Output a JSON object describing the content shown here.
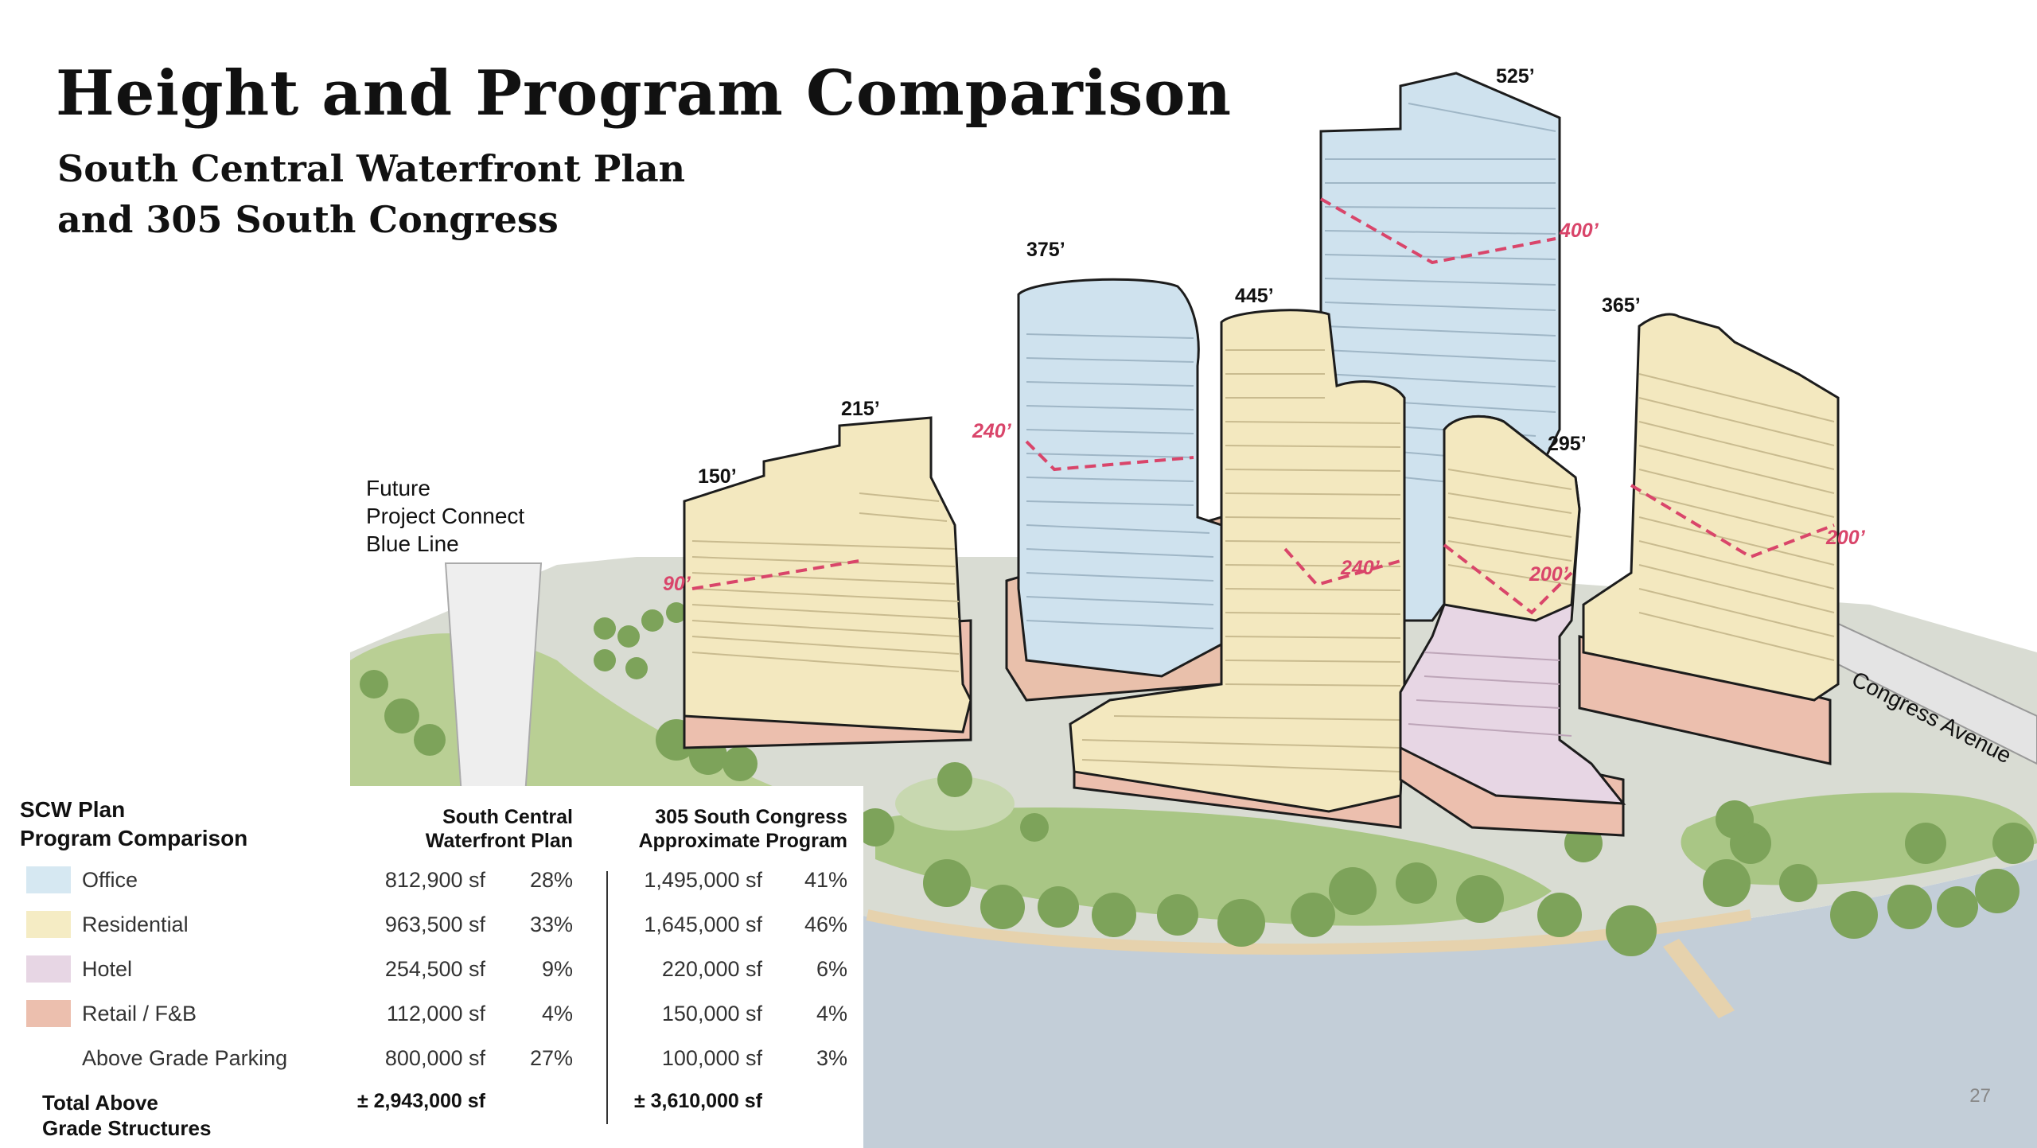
{
  "slide": {
    "title": "Height and Program Comparison",
    "subtitle_line1": "South Central Waterfront Plan",
    "subtitle_line2": "and 305 South Congress",
    "page_number": "27"
  },
  "map": {
    "transit_line1": "Future",
    "transit_line2": "Project Connect",
    "transit_line3": "Blue Line",
    "street_label": "Congress Avenue",
    "building_heights": [
      "150’",
      "215’",
      "375’",
      "445’",
      "525’",
      "295’",
      "365’"
    ],
    "plan_heights": [
      "90’",
      "240’",
      "240’",
      "400’",
      "200’",
      "200’"
    ]
  },
  "table": {
    "title_line1": "SCW Plan",
    "title_line2": "Program Comparison",
    "col1_line1": "South Central",
    "col1_line2": "Waterfront Plan",
    "col2_line1": "305 South Congress",
    "col2_line2": "Approximate Program",
    "rows": [
      {
        "category": "Office",
        "color": "#d6e8f2",
        "scw_sf": "812,900 sf",
        "scw_pct": "28%",
        "sc_sf": "1,495,000 sf",
        "sc_pct": "41%"
      },
      {
        "category": "Residential",
        "color": "#f5ecc4",
        "scw_sf": "963,500 sf",
        "scw_pct": "33%",
        "sc_sf": "1,645,000 sf",
        "sc_pct": "46%"
      },
      {
        "category": "Hotel",
        "color": "#e7d6e4",
        "scw_sf": "254,500 sf",
        "scw_pct": "9%",
        "sc_sf": "220,000 sf",
        "sc_pct": "6%"
      },
      {
        "category": "Retail / F&B",
        "color": "#ecbfae",
        "scw_sf": "112,000 sf",
        "scw_pct": "4%",
        "sc_sf": "150,000 sf",
        "sc_pct": "4%"
      },
      {
        "category": "Above Grade Parking",
        "color": "",
        "scw_sf": "800,000 sf",
        "scw_pct": "27%",
        "sc_sf": "100,000 sf",
        "sc_pct": "3%"
      }
    ],
    "total_line1": "Total Above",
    "total_line2": "Grade Structures",
    "total_scw": "± 2,943,000 sf",
    "total_sc": "± 3,610,000 sf"
  }
}
